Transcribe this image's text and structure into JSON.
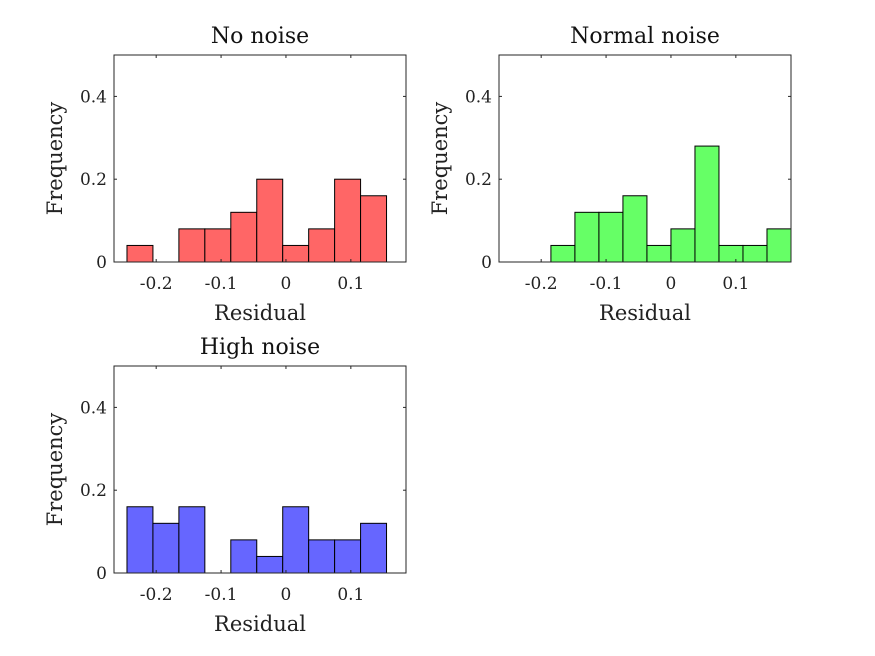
{
  "chart_data": [
    {
      "type": "bar",
      "title": "No noise",
      "xlabel": "Residual",
      "ylabel": "Frequency",
      "color": "#ff6666",
      "xlim": [
        -0.265,
        0.185
      ],
      "ylim": [
        0,
        0.5
      ],
      "xticks": [
        -0.2,
        -0.1,
        0,
        0.1
      ],
      "xtick_labels": [
        "-0.2",
        "-0.1",
        "0",
        "0.1"
      ],
      "yticks": [
        0,
        0.2,
        0.4
      ],
      "ytick_labels": [
        "0",
        "0.2",
        "0.4"
      ],
      "bin_width": 0.04,
      "bin_edges": [
        -0.245,
        -0.205,
        -0.165,
        -0.125,
        -0.085,
        -0.045,
        -0.005,
        0.035,
        0.075,
        0.115,
        0.155
      ],
      "values": [
        0.04,
        0,
        0.08,
        0.08,
        0.12,
        0.2,
        0.04,
        0.08,
        0.2,
        0.16
      ]
    },
    {
      "type": "bar",
      "title": "Normal noise",
      "xlabel": "Residual",
      "ylabel": "Frequency",
      "color": "#66ff66",
      "xlim": [
        -0.265,
        0.185
      ],
      "ylim": [
        0,
        0.5
      ],
      "xticks": [
        -0.2,
        -0.1,
        0,
        0.1
      ],
      "xtick_labels": [
        "-0.2",
        "-0.1",
        "0",
        "0.1"
      ],
      "yticks": [
        0,
        0.2,
        0.4
      ],
      "ytick_labels": [
        "0",
        "0.2",
        "0.4"
      ],
      "bin_width": 0.037,
      "bin_edges": [
        -0.185,
        -0.148,
        -0.111,
        -0.074,
        -0.037,
        0,
        0.037,
        0.074,
        0.111,
        0.148,
        0.185
      ],
      "values": [
        0.04,
        0.12,
        0.12,
        0.16,
        0.04,
        0.08,
        0.28,
        0.04,
        0.04,
        0.08
      ]
    },
    {
      "type": "bar",
      "title": "High noise",
      "xlabel": "Residual",
      "ylabel": "Frequency",
      "color": "#6666ff",
      "xlim": [
        -0.265,
        0.185
      ],
      "ylim": [
        0,
        0.5
      ],
      "xticks": [
        -0.2,
        -0.1,
        0,
        0.1
      ],
      "xtick_labels": [
        "-0.2",
        "-0.1",
        "0",
        "0.1"
      ],
      "yticks": [
        0,
        0.2,
        0.4
      ],
      "ytick_labels": [
        "0",
        "0.2",
        "0.4"
      ],
      "bin_width": 0.04,
      "bin_edges": [
        -0.245,
        -0.205,
        -0.165,
        -0.125,
        -0.085,
        -0.045,
        -0.005,
        0.035,
        0.075,
        0.115,
        0.155
      ],
      "values": [
        0.16,
        0.12,
        0.16,
        0,
        0.08,
        0.04,
        0.16,
        0.08,
        0.08,
        0.12
      ]
    }
  ]
}
